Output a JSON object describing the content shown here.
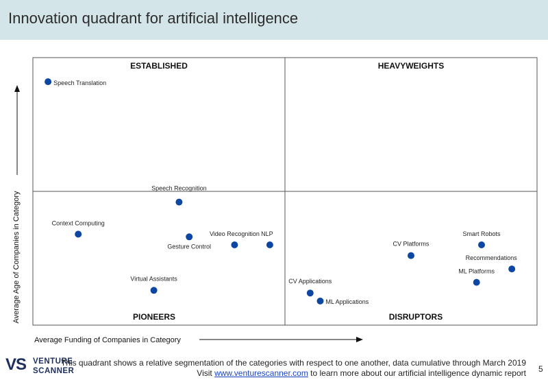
{
  "header": {
    "title": "Innovation quadrant for artificial intelligence"
  },
  "chart_data": {
    "type": "scatter",
    "title": "Innovation quadrant for artificial intelligence",
    "xlabel": "Average Funding of Companies in Category",
    "ylabel": "Average Age of Companies in Category",
    "xlim": [
      0,
      100
    ],
    "ylim": [
      0,
      100
    ],
    "quadrants": {
      "top_left": "ESTABLISHED",
      "top_right": "HEAVYWEIGHTS",
      "bottom_left": "PIONEERS",
      "bottom_right": "DISRUPTORS"
    },
    "points": [
      {
        "label": "Speech Translation",
        "x": 3,
        "y": 91
      },
      {
        "label": "Speech Recognition",
        "x": 29,
        "y": 46
      },
      {
        "label": "Context Computing",
        "x": 9,
        "y": 34
      },
      {
        "label": "Gesture Control",
        "x": 31,
        "y": 33
      },
      {
        "label": "Video Recognition",
        "x": 40,
        "y": 30
      },
      {
        "label": "NLP",
        "x": 47,
        "y": 30
      },
      {
        "label": "Virtual Assistants",
        "x": 24,
        "y": 13
      },
      {
        "label": "CV Platforms",
        "x": 75,
        "y": 26
      },
      {
        "label": "Smart Robots",
        "x": 89,
        "y": 30
      },
      {
        "label": "Recommendations",
        "x": 95,
        "y": 21
      },
      {
        "label": "ML Platforms",
        "x": 88,
        "y": 16
      },
      {
        "label": "CV Applications",
        "x": 55,
        "y": 12
      },
      {
        "label": "ML Applications",
        "x": 57,
        "y": 9
      }
    ]
  },
  "colors": {
    "dot": "#0d47a1",
    "header_bg": "#d4e5e9",
    "link": "#1a44c8"
  },
  "footer": {
    "note_line1": "This quadrant shows a relative segmentation of the categories with respect to one another, data cumulative through March 2019",
    "visit_prefix": "Visit ",
    "link_text": "www.venturescanner.com",
    "visit_suffix": " to learn more about our artificial intelligence dynamic report",
    "page_number": "5"
  },
  "logo": {
    "mark": "VS",
    "word1": "VENTURE",
    "word2": "SCANNER"
  }
}
